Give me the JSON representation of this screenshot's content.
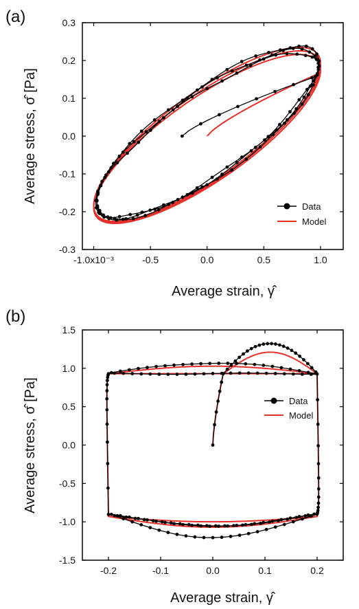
{
  "chart_data": [
    {
      "type": "line",
      "panel_label": "(a)",
      "xlabel": "Average strain, γ̂",
      "ylabel": "Average stress, σ̂  [Pa]",
      "xlim": [
        -0.0011,
        0.0012
      ],
      "ylim": [
        -0.3,
        0.3
      ],
      "x_ticks": [
        -0.001,
        -0.0005,
        0,
        0.0005,
        0.001
      ],
      "x_tick_labels": [
        "-1.0x10⁻³",
        "-0.5",
        "0.0",
        "0.5",
        "1.0"
      ],
      "y_ticks": [
        -0.3,
        -0.2,
        -0.1,
        0.0,
        0.1,
        0.2,
        0.3
      ],
      "y_tick_labels": [
        "-0.3",
        "-0.2",
        "-0.1",
        "0.0",
        "0.1",
        "0.2",
        "0.3"
      ],
      "grid": false,
      "legend_position": "bottom-right",
      "series": [
        {
          "name": "Data",
          "color": "#000000",
          "marker": "circle",
          "start": {
            "x": -0.00022,
            "y": 0.0
          },
          "cycles": 3,
          "amplitude_x": 0.00098,
          "y_at_x_max": 0.16,
          "y_peak": 0.225,
          "y_min": -0.215
        },
        {
          "name": "Model",
          "color": "#e8302a",
          "marker": "none",
          "start": {
            "x": 0.0,
            "y": 0.0
          },
          "cycles": 3,
          "amplitude_x": 0.001,
          "y_at_x_max": 0.168,
          "y_peak": 0.222,
          "y_min": -0.225
        }
      ]
    },
    {
      "type": "line",
      "panel_label": "(b)",
      "xlabel": "Average strain, γ̂",
      "ylabel": "Average stress, σ̂  [Pa]",
      "xlim": [
        -0.25,
        0.25
      ],
      "ylim": [
        -1.5,
        1.5
      ],
      "x_ticks": [
        -0.2,
        -0.1,
        0.0,
        0.1,
        0.2
      ],
      "x_tick_labels": [
        "-0.2",
        "-0.1",
        "0.0",
        "0.1",
        "0.2"
      ],
      "y_ticks": [
        -1.5,
        -1.0,
        -0.5,
        0.0,
        0.5,
        1.0,
        1.5
      ],
      "y_tick_labels": [
        "-1.5",
        "-1.0",
        "-0.5",
        "0.0",
        "0.5",
        "1.0",
        "1.5"
      ],
      "grid": false,
      "legend_position": "top-right",
      "series": [
        {
          "name": "Data",
          "color": "#000000",
          "marker": "circle",
          "start": {
            "x": 0.0,
            "y": 0.0
          },
          "cycles": 3,
          "amplitude_x": 0.2,
          "y_overshoot": 1.33,
          "y_top": 0.93,
          "y_bottom": -0.9,
          "y_bottom_overshoot": -1.2
        },
        {
          "name": "Model",
          "color": "#e8302a",
          "marker": "none",
          "start": {
            "x": 0.0,
            "y": 0.0
          },
          "cycles": 3,
          "amplitude_x": 0.2,
          "y_overshoot": 1.26,
          "y_top": 0.93,
          "y_bottom": -0.93,
          "y_bottom_overshoot": -1.07
        }
      ]
    }
  ]
}
